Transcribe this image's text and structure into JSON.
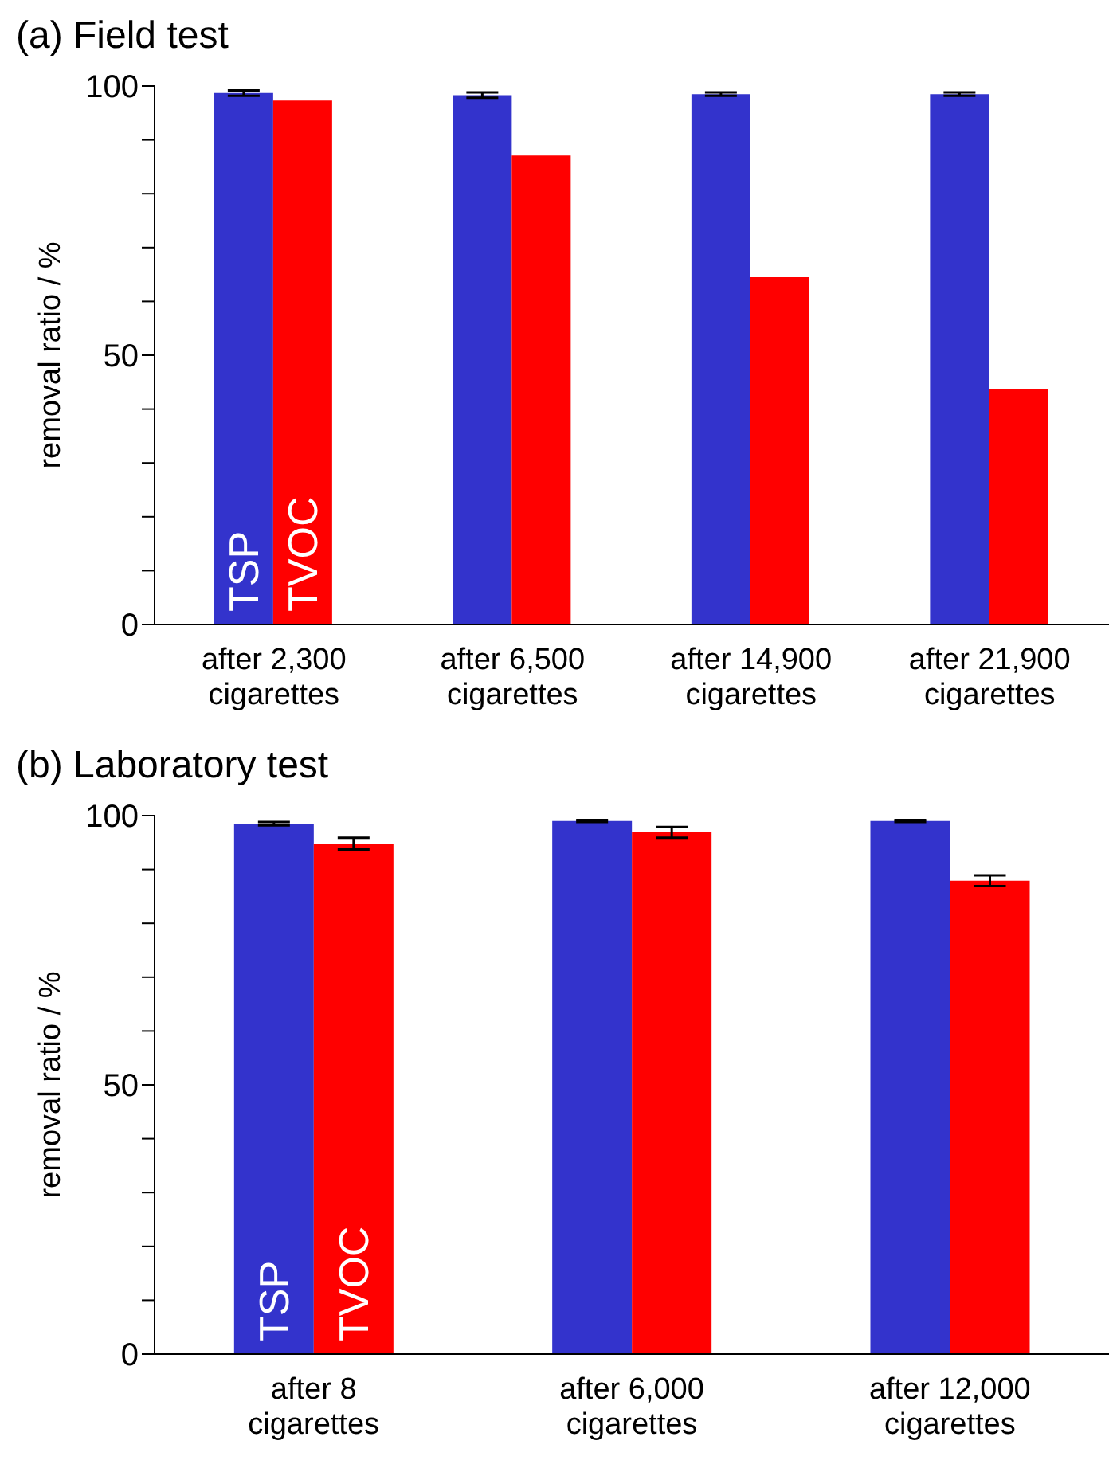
{
  "chart_data": [
    {
      "type": "bar",
      "title": "(a) Field test",
      "ylabel": "removal ratio / %",
      "categories": [
        "after 2,300 cigarettes",
        "after 6,500 cigarettes",
        "after 14,900 cigarettes",
        "after 21,900 cigarettes"
      ],
      "series": [
        {
          "name": "TSP",
          "color": "#3333cc",
          "values": [
            98.7,
            98.3,
            98.5,
            98.5
          ],
          "errors": [
            0.5,
            0.5,
            0.3,
            0.3
          ]
        },
        {
          "name": "TVOC",
          "color": "#ff0000",
          "values": [
            97.3,
            87.1,
            64.5,
            43.7
          ]
        }
      ],
      "ylim": [
        0,
        100
      ],
      "yticks": [
        0,
        {
          "value": 10,
          "label": null
        },
        {
          "value": 20,
          "label": null
        },
        {
          "value": 30,
          "label": null
        },
        {
          "value": 40,
          "label": null
        },
        50,
        {
          "value": 60,
          "label": null
        },
        {
          "value": 70,
          "label": null
        },
        {
          "value": 80,
          "label": null
        },
        {
          "value": 90,
          "label": null
        },
        100
      ],
      "grid": false,
      "legend": false
    },
    {
      "type": "bar",
      "title": "(b) Laboratory test",
      "ylabel": "removal ratio / %",
      "categories": [
        "after 8 cigarettes",
        "after 6,000 cigarettes",
        "after 12,000 cigarettes"
      ],
      "series": [
        {
          "name": "TSP",
          "color": "#3333cc",
          "values": [
            98.5,
            99.0,
            99.0
          ],
          "errors": [
            0.3,
            0.2,
            0.2
          ]
        },
        {
          "name": "TVOC",
          "color": "#ff0000",
          "values": [
            94.8,
            96.9,
            87.9
          ],
          "errors": [
            1.1,
            1.0,
            1.0
          ]
        }
      ],
      "ylim": [
        0,
        100
      ],
      "yticks": [
        0,
        {
          "value": 10,
          "label": null
        },
        {
          "value": 20,
          "label": null
        },
        {
          "value": 30,
          "label": null
        },
        {
          "value": 40,
          "label": null
        },
        50,
        {
          "value": 60,
          "label": null
        },
        {
          "value": 70,
          "label": null
        },
        {
          "value": 80,
          "label": null
        },
        {
          "value": 90,
          "label": null
        },
        100
      ],
      "grid": false,
      "legend": false
    }
  ]
}
